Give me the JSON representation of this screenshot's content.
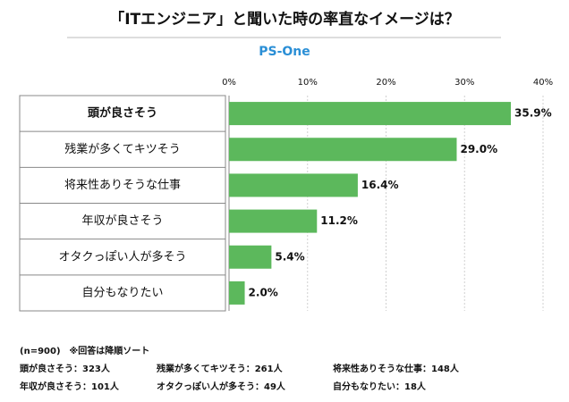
{
  "chart_data": {
    "type": "bar",
    "orientation": "horizontal",
    "title": "「ITエンジニア」と聞いた時の率直なイメージは？",
    "subtitle": "PS-One",
    "categories": [
      "頭が良さそう",
      "残業が多くてキツそう",
      "将来性ありそうな仕事",
      "年収が良さそう",
      "オタクっぽい人が多そう",
      "自分もなりたい"
    ],
    "values": [
      35.9,
      29.0,
      16.4,
      11.2,
      5.4,
      2.0
    ],
    "value_labels": [
      "35.9%",
      "29.0%",
      "16.4%",
      "11.2%",
      "5.4%",
      "2.0%"
    ],
    "color": "#5cb85c",
    "xlim": [
      0,
      40
    ],
    "xticks": [
      {
        "value": 0,
        "label": "0%"
      },
      {
        "value": 10,
        "label": "10%"
      },
      {
        "value": 20,
        "label": "20%"
      },
      {
        "value": 30,
        "label": "30%"
      },
      {
        "value": 40,
        "label": "40%"
      }
    ],
    "grid": true,
    "notes": [
      [
        "(n=900)　※回答は降順ソート"
      ],
      [
        "頭が良さそう：323人",
        "残業が多くてキツそう：261人",
        "将来性ありそうな仕事：148人"
      ],
      [
        "年収が良さそう：101人",
        "オタクっぽい人が多そう：49人",
        "自分もなりたい：18人"
      ]
    ]
  }
}
